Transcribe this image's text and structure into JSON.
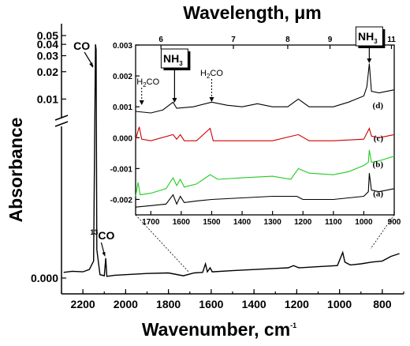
{
  "chart_data": [
    {
      "type": "line",
      "panel": "main",
      "xlabel_base": "Wavenumber, cm",
      "xlabel_exp": "-1",
      "ylabel": "Absorbance",
      "xlim": [
        2300,
        700
      ],
      "x_direction": "reversed",
      "x_ticks": [
        "2200",
        "2000",
        "1800",
        "1600",
        "1400",
        "1200",
        "1000",
        "800"
      ],
      "y_axis_break": true,
      "y_ticks_upper": [
        "0.05",
        "0.04",
        "0.03",
        "0.02",
        "0.01"
      ],
      "y_ticks_lower": [
        "0.000"
      ],
      "top_axis_label_base": "Wavelength, ",
      "top_axis_label_unit": "μm",
      "series": [
        {
          "color": "#000000",
          "points": [
            [
              2290,
              0.001
            ],
            [
              2250,
              0.0012
            ],
            [
              2200,
              0.0011
            ],
            [
              2170,
              0.0015
            ],
            [
              2150,
              0.003
            ],
            [
              2141,
              0.04
            ],
            [
              2138,
              0.035
            ],
            [
              2135,
              0.005
            ],
            [
              2120,
              0.0006
            ],
            [
              2100,
              0.0004
            ],
            [
              2093,
              0.0035
            ],
            [
              2088,
              0.0003
            ],
            [
              2050,
              0.0005
            ],
            [
              2000,
              0.0006
            ],
            [
              1900,
              0.0008
            ],
            [
              1800,
              0.0009
            ],
            [
              1730,
              0.0004
            ],
            [
              1680,
              0.0009
            ],
            [
              1640,
              0.001
            ],
            [
              1627,
              0.0025
            ],
            [
              1618,
              0.0011
            ],
            [
              1605,
              0.0018
            ],
            [
              1595,
              0.0011
            ],
            [
              1500,
              0.0013
            ],
            [
              1400,
              0.0015
            ],
            [
              1300,
              0.0017
            ],
            [
              1240,
              0.0018
            ],
            [
              1215,
              0.0022
            ],
            [
              1190,
              0.0018
            ],
            [
              1100,
              0.002
            ],
            [
              1010,
              0.0022
            ],
            [
              985,
              0.0045
            ],
            [
              975,
              0.0028
            ],
            [
              950,
              0.0023
            ],
            [
              900,
              0.0025
            ],
            [
              850,
              0.0028
            ],
            [
              800,
              0.003
            ],
            [
              760,
              0.0038
            ],
            [
              720,
              0.0043
            ]
          ]
        }
      ],
      "annotations": [
        {
          "text": "CO",
          "x": 2141
        },
        {
          "text_sup": "13",
          "text": "CO",
          "x": 2092
        }
      ]
    },
    {
      "type": "line",
      "panel": "inset",
      "xlim": [
        1750,
        900
      ],
      "x_direction": "reversed",
      "ylim": [
        -0.0025,
        0.003
      ],
      "x_ticks": [
        "1700",
        "1600",
        "1500",
        "1400",
        "1300",
        "1200",
        "1100",
        "1000",
        "900"
      ],
      "y_ticks": [
        "0.003",
        "0.002",
        "0.001",
        "0.000",
        "-0.001",
        "-0.002"
      ],
      "top_ticks": [
        "6",
        "7",
        "8",
        "9",
        "11"
      ],
      "series": [
        {
          "name": "(d)",
          "color": "#000000",
          "points": [
            [
              1750,
              0.00085
            ],
            [
              1700,
              0.0008
            ],
            [
              1660,
              0.0009
            ],
            [
              1627,
              0.00115
            ],
            [
              1615,
              0.00095
            ],
            [
              1560,
              0.001
            ],
            [
              1500,
              0.00115
            ],
            [
              1450,
              0.00105
            ],
            [
              1400,
              0.001
            ],
            [
              1350,
              0.0011
            ],
            [
              1300,
              0.001
            ],
            [
              1250,
              0.001
            ],
            [
              1215,
              0.00125
            ],
            [
              1180,
              0.001
            ],
            [
              1100,
              0.001
            ],
            [
              1050,
              0.00115
            ],
            [
              1000,
              0.00135
            ],
            [
              990,
              0.00165
            ],
            [
              982,
              0.0024
            ],
            [
              975,
              0.0015
            ],
            [
              950,
              0.00145
            ],
            [
              900,
              0.00155
            ]
          ]
        },
        {
          "name": "(c)",
          "color": "#cc0000",
          "points": [
            [
              1750,
              -5e-05
            ],
            [
              1738,
              0.00035
            ],
            [
              1730,
              -5e-05
            ],
            [
              1700,
              -0.0001
            ],
            [
              1627,
              0.0001
            ],
            [
              1615,
              -5e-05
            ],
            [
              1603,
              0.0001
            ],
            [
              1590,
              -0.0001
            ],
            [
              1550,
              -0.0001
            ],
            [
              1505,
              0.0003
            ],
            [
              1495,
              -0.0001
            ],
            [
              1400,
              -0.0001
            ],
            [
              1300,
              -0.0001
            ],
            [
              1215,
              0.0001
            ],
            [
              1180,
              -0.0001
            ],
            [
              1100,
              -0.0001
            ],
            [
              1000,
              -5e-05
            ],
            [
              982,
              0.0003
            ],
            [
              975,
              5e-05
            ],
            [
              950,
              0.0
            ],
            [
              900,
              0.0001
            ]
          ]
        },
        {
          "name": "(b)",
          "color": "#22cc22",
          "points": [
            [
              1750,
              -0.0019
            ],
            [
              1742,
              -0.00145
            ],
            [
              1735,
              -0.00185
            ],
            [
              1700,
              -0.0018
            ],
            [
              1650,
              -0.00165
            ],
            [
              1627,
              -0.0013
            ],
            [
              1615,
              -0.00155
            ],
            [
              1603,
              -0.00135
            ],
            [
              1590,
              -0.0016
            ],
            [
              1550,
              -0.0015
            ],
            [
              1505,
              -0.0012
            ],
            [
              1480,
              -0.00135
            ],
            [
              1400,
              -0.0013
            ],
            [
              1300,
              -0.00125
            ],
            [
              1240,
              -0.00135
            ],
            [
              1215,
              -0.001
            ],
            [
              1180,
              -0.00115
            ],
            [
              1100,
              -0.0012
            ],
            [
              1050,
              -0.0011
            ],
            [
              1000,
              -0.0009
            ],
            [
              985,
              -0.0008
            ],
            [
              982,
              -0.0004
            ],
            [
              975,
              -0.0008
            ],
            [
              950,
              -0.00075
            ],
            [
              900,
              -0.0006
            ]
          ]
        },
        {
          "name": "(a)",
          "color": "#000000",
          "points": [
            [
              1750,
              -0.00225
            ],
            [
              1700,
              -0.0022
            ],
            [
              1650,
              -0.00215
            ],
            [
              1627,
              -0.00185
            ],
            [
              1615,
              -0.00215
            ],
            [
              1603,
              -0.0019
            ],
            [
              1590,
              -0.0021
            ],
            [
              1550,
              -0.00205
            ],
            [
              1500,
              -0.002
            ],
            [
              1400,
              -0.00195
            ],
            [
              1300,
              -0.0019
            ],
            [
              1220,
              -0.0019
            ],
            [
              1200,
              -0.002
            ],
            [
              1100,
              -0.002
            ],
            [
              1050,
              -0.00195
            ],
            [
              1000,
              -0.0019
            ],
            [
              985,
              -0.00175
            ],
            [
              982,
              -0.00115
            ],
            [
              975,
              -0.0017
            ],
            [
              950,
              -0.00175
            ],
            [
              900,
              -0.00165
            ]
          ]
        }
      ],
      "annotations": [
        {
          "text_base": "NH",
          "text_sub": "3",
          "x": 1622,
          "boxed": true
        },
        {
          "text_base": "NH",
          "text_sub": "3",
          "x": 982,
          "boxed": true
        },
        {
          "text_base": "H",
          "text_sub": "2",
          "text_end": "CO",
          "x": 1730,
          "dotted": true
        },
        {
          "text_base": "H",
          "text_sub": "2",
          "text_end": "CO",
          "x": 1500,
          "dotted": true
        }
      ]
    }
  ]
}
